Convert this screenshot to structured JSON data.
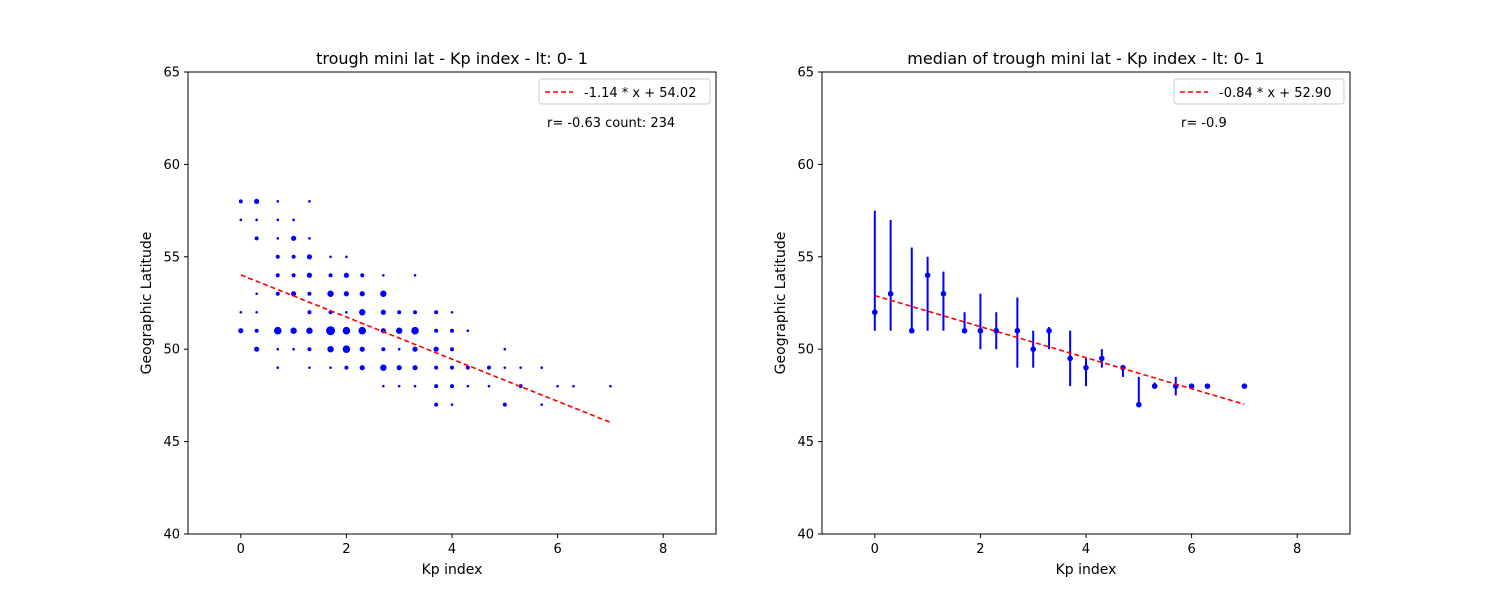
{
  "chart_data": [
    {
      "type": "scatter",
      "title": "trough mini lat - Kp index - lt: 0- 1",
      "xlabel": "Kp index",
      "ylabel": "Geographic Latitude",
      "xlim": [
        -1,
        9
      ],
      "ylim": [
        40,
        65
      ],
      "xticks": [
        "0",
        "2",
        "4",
        "6",
        "8"
      ],
      "yticks": [
        "40",
        "45",
        "50",
        "55",
        "60",
        "65"
      ],
      "grid": false,
      "legend_position": "top-right",
      "marker_color": "#0000ff",
      "fit_color": "#ff0000",
      "fit": {
        "label": "-1.14 * x + 54.02",
        "slope": -1.14,
        "intercept": 54.02,
        "x_range": [
          0,
          7
        ]
      },
      "annotation": "r= -0.63 count: 234",
      "points": [
        {
          "x": 0,
          "y": 58,
          "size": 2
        },
        {
          "x": 0,
          "y": 57,
          "size": 1
        },
        {
          "x": 0,
          "y": 52,
          "size": 1
        },
        {
          "x": 0,
          "y": 51,
          "size": 3
        },
        {
          "x": 0.3,
          "y": 58,
          "size": 3
        },
        {
          "x": 0.3,
          "y": 57,
          "size": 1
        },
        {
          "x": 0.3,
          "y": 56,
          "size": 2
        },
        {
          "x": 0.3,
          "y": 53,
          "size": 1
        },
        {
          "x": 0.3,
          "y": 52,
          "size": 1
        },
        {
          "x": 0.3,
          "y": 51,
          "size": 2
        },
        {
          "x": 0.3,
          "y": 50,
          "size": 3
        },
        {
          "x": 0.7,
          "y": 58,
          "size": 1
        },
        {
          "x": 0.7,
          "y": 57,
          "size": 1
        },
        {
          "x": 0.7,
          "y": 56,
          "size": 1
        },
        {
          "x": 0.7,
          "y": 55,
          "size": 2
        },
        {
          "x": 0.7,
          "y": 54,
          "size": 2
        },
        {
          "x": 0.7,
          "y": 53,
          "size": 2
        },
        {
          "x": 0.7,
          "y": 51,
          "size": 5
        },
        {
          "x": 0.7,
          "y": 50,
          "size": 1
        },
        {
          "x": 0.7,
          "y": 49,
          "size": 1
        },
        {
          "x": 1.0,
          "y": 57,
          "size": 1
        },
        {
          "x": 1.0,
          "y": 56,
          "size": 3
        },
        {
          "x": 1.0,
          "y": 55,
          "size": 2
        },
        {
          "x": 1.0,
          "y": 54,
          "size": 2
        },
        {
          "x": 1.0,
          "y": 53,
          "size": 3
        },
        {
          "x": 1.0,
          "y": 51,
          "size": 4
        },
        {
          "x": 1.0,
          "y": 50,
          "size": 1
        },
        {
          "x": 1.3,
          "y": 58,
          "size": 1
        },
        {
          "x": 1.3,
          "y": 56,
          "size": 1
        },
        {
          "x": 1.3,
          "y": 55,
          "size": 3
        },
        {
          "x": 1.3,
          "y": 54,
          "size": 3
        },
        {
          "x": 1.3,
          "y": 53,
          "size": 2
        },
        {
          "x": 1.3,
          "y": 52,
          "size": 2
        },
        {
          "x": 1.3,
          "y": 51,
          "size": 4
        },
        {
          "x": 1.3,
          "y": 50,
          "size": 2
        },
        {
          "x": 1.3,
          "y": 49,
          "size": 1
        },
        {
          "x": 1.7,
          "y": 55,
          "size": 1
        },
        {
          "x": 1.7,
          "y": 54,
          "size": 2
        },
        {
          "x": 1.7,
          "y": 53,
          "size": 4
        },
        {
          "x": 1.7,
          "y": 52,
          "size": 2
        },
        {
          "x": 1.7,
          "y": 51,
          "size": 6
        },
        {
          "x": 1.7,
          "y": 50,
          "size": 4
        },
        {
          "x": 1.7,
          "y": 49,
          "size": 1
        },
        {
          "x": 2.0,
          "y": 55,
          "size": 1
        },
        {
          "x": 2.0,
          "y": 54,
          "size": 3
        },
        {
          "x": 2.0,
          "y": 53,
          "size": 3
        },
        {
          "x": 2.0,
          "y": 52,
          "size": 1
        },
        {
          "x": 2.0,
          "y": 51,
          "size": 5
        },
        {
          "x": 2.0,
          "y": 50,
          "size": 5
        },
        {
          "x": 2.0,
          "y": 49,
          "size": 2
        },
        {
          "x": 2.3,
          "y": 54,
          "size": 2
        },
        {
          "x": 2.3,
          "y": 53,
          "size": 3
        },
        {
          "x": 2.3,
          "y": 52,
          "size": 4
        },
        {
          "x": 2.3,
          "y": 51,
          "size": 5
        },
        {
          "x": 2.3,
          "y": 50,
          "size": 3
        },
        {
          "x": 2.3,
          "y": 49,
          "size": 3
        },
        {
          "x": 2.7,
          "y": 54,
          "size": 1
        },
        {
          "x": 2.7,
          "y": 53,
          "size": 4
        },
        {
          "x": 2.7,
          "y": 52,
          "size": 3
        },
        {
          "x": 2.7,
          "y": 51,
          "size": 3
        },
        {
          "x": 2.7,
          "y": 50,
          "size": 2
        },
        {
          "x": 2.7,
          "y": 49,
          "size": 4
        },
        {
          "x": 2.7,
          "y": 48,
          "size": 1
        },
        {
          "x": 3.0,
          "y": 52,
          "size": 2
        },
        {
          "x": 3.0,
          "y": 51,
          "size": 4
        },
        {
          "x": 3.0,
          "y": 50,
          "size": 1
        },
        {
          "x": 3.0,
          "y": 49,
          "size": 3
        },
        {
          "x": 3.0,
          "y": 48,
          "size": 1
        },
        {
          "x": 3.3,
          "y": 54,
          "size": 1
        },
        {
          "x": 3.3,
          "y": 52,
          "size": 2
        },
        {
          "x": 3.3,
          "y": 51,
          "size": 5
        },
        {
          "x": 3.3,
          "y": 50,
          "size": 3
        },
        {
          "x": 3.3,
          "y": 49,
          "size": 3
        },
        {
          "x": 3.3,
          "y": 48,
          "size": 1
        },
        {
          "x": 3.7,
          "y": 52,
          "size": 2
        },
        {
          "x": 3.7,
          "y": 51,
          "size": 2
        },
        {
          "x": 3.7,
          "y": 50,
          "size": 3
        },
        {
          "x": 3.7,
          "y": 49,
          "size": 2
        },
        {
          "x": 3.7,
          "y": 48,
          "size": 2
        },
        {
          "x": 3.7,
          "y": 47,
          "size": 2
        },
        {
          "x": 4.0,
          "y": 52,
          "size": 1
        },
        {
          "x": 4.0,
          "y": 51,
          "size": 2
        },
        {
          "x": 4.0,
          "y": 50,
          "size": 2
        },
        {
          "x": 4.0,
          "y": 49,
          "size": 2
        },
        {
          "x": 4.0,
          "y": 48,
          "size": 2
        },
        {
          "x": 4.0,
          "y": 47,
          "size": 1
        },
        {
          "x": 4.3,
          "y": 51,
          "size": 1
        },
        {
          "x": 4.3,
          "y": 49,
          "size": 2
        },
        {
          "x": 4.3,
          "y": 48,
          "size": 1
        },
        {
          "x": 4.7,
          "y": 49,
          "size": 2
        },
        {
          "x": 4.7,
          "y": 48,
          "size": 1
        },
        {
          "x": 5.0,
          "y": 50,
          "size": 1
        },
        {
          "x": 5.0,
          "y": 49,
          "size": 1
        },
        {
          "x": 5.0,
          "y": 47,
          "size": 2
        },
        {
          "x": 5.3,
          "y": 49,
          "size": 1
        },
        {
          "x": 5.3,
          "y": 48,
          "size": 2
        },
        {
          "x": 5.7,
          "y": 49,
          "size": 1
        },
        {
          "x": 5.7,
          "y": 47,
          "size": 1
        },
        {
          "x": 6.0,
          "y": 48,
          "size": 1
        },
        {
          "x": 6.3,
          "y": 48,
          "size": 1
        },
        {
          "x": 7.0,
          "y": 48,
          "size": 1
        }
      ]
    },
    {
      "type": "scatter",
      "title": "median of trough mini lat - Kp index - lt: 0- 1",
      "xlabel": "Kp index",
      "ylabel": "Geographic Latitude",
      "xlim": [
        -1,
        9
      ],
      "ylim": [
        40,
        65
      ],
      "xticks": [
        "0",
        "2",
        "4",
        "6",
        "8"
      ],
      "yticks": [
        "40",
        "45",
        "50",
        "55",
        "60",
        "65"
      ],
      "grid": false,
      "legend_position": "top-right",
      "marker_color": "#0000ff",
      "fit_color": "#ff0000",
      "fit": {
        "label": "-0.84 * x + 52.90",
        "slope": -0.84,
        "intercept": 52.9,
        "x_range": [
          0,
          7
        ]
      },
      "annotation": "r= -0.9",
      "points": [
        {
          "x": 0,
          "y": 52,
          "lo": 51,
          "hi": 57.5
        },
        {
          "x": 0.3,
          "y": 53,
          "lo": 51,
          "hi": 57
        },
        {
          "x": 0.7,
          "y": 51,
          "lo": 51,
          "hi": 55.5
        },
        {
          "x": 1.0,
          "y": 54,
          "lo": 51,
          "hi": 55
        },
        {
          "x": 1.3,
          "y": 53,
          "lo": 51,
          "hi": 54.2
        },
        {
          "x": 1.7,
          "y": 51,
          "lo": 51,
          "hi": 52
        },
        {
          "x": 2.0,
          "y": 51,
          "lo": 50,
          "hi": 53
        },
        {
          "x": 2.3,
          "y": 51,
          "lo": 50,
          "hi": 52
        },
        {
          "x": 2.7,
          "y": 51,
          "lo": 49,
          "hi": 52.8
        },
        {
          "x": 3.0,
          "y": 50,
          "lo": 49,
          "hi": 51
        },
        {
          "x": 3.3,
          "y": 51,
          "lo": 50,
          "hi": 51.2
        },
        {
          "x": 3.7,
          "y": 49.5,
          "lo": 48,
          "hi": 51
        },
        {
          "x": 4.0,
          "y": 49,
          "lo": 48,
          "hi": 49.5
        },
        {
          "x": 4.3,
          "y": 49.5,
          "lo": 49,
          "hi": 50
        },
        {
          "x": 4.7,
          "y": 49,
          "lo": 48.5,
          "hi": 49
        },
        {
          "x": 5.0,
          "y": 47,
          "lo": 47,
          "hi": 48.5
        },
        {
          "x": 5.3,
          "y": 48,
          "lo": 48,
          "hi": 48.2
        },
        {
          "x": 5.7,
          "y": 48,
          "lo": 47.5,
          "hi": 48.5
        },
        {
          "x": 6.0,
          "y": 48,
          "lo": 48,
          "hi": 48
        },
        {
          "x": 6.3,
          "y": 48,
          "lo": 48,
          "hi": 48
        },
        {
          "x": 7.0,
          "y": 48,
          "lo": 48,
          "hi": 48
        }
      ]
    }
  ]
}
